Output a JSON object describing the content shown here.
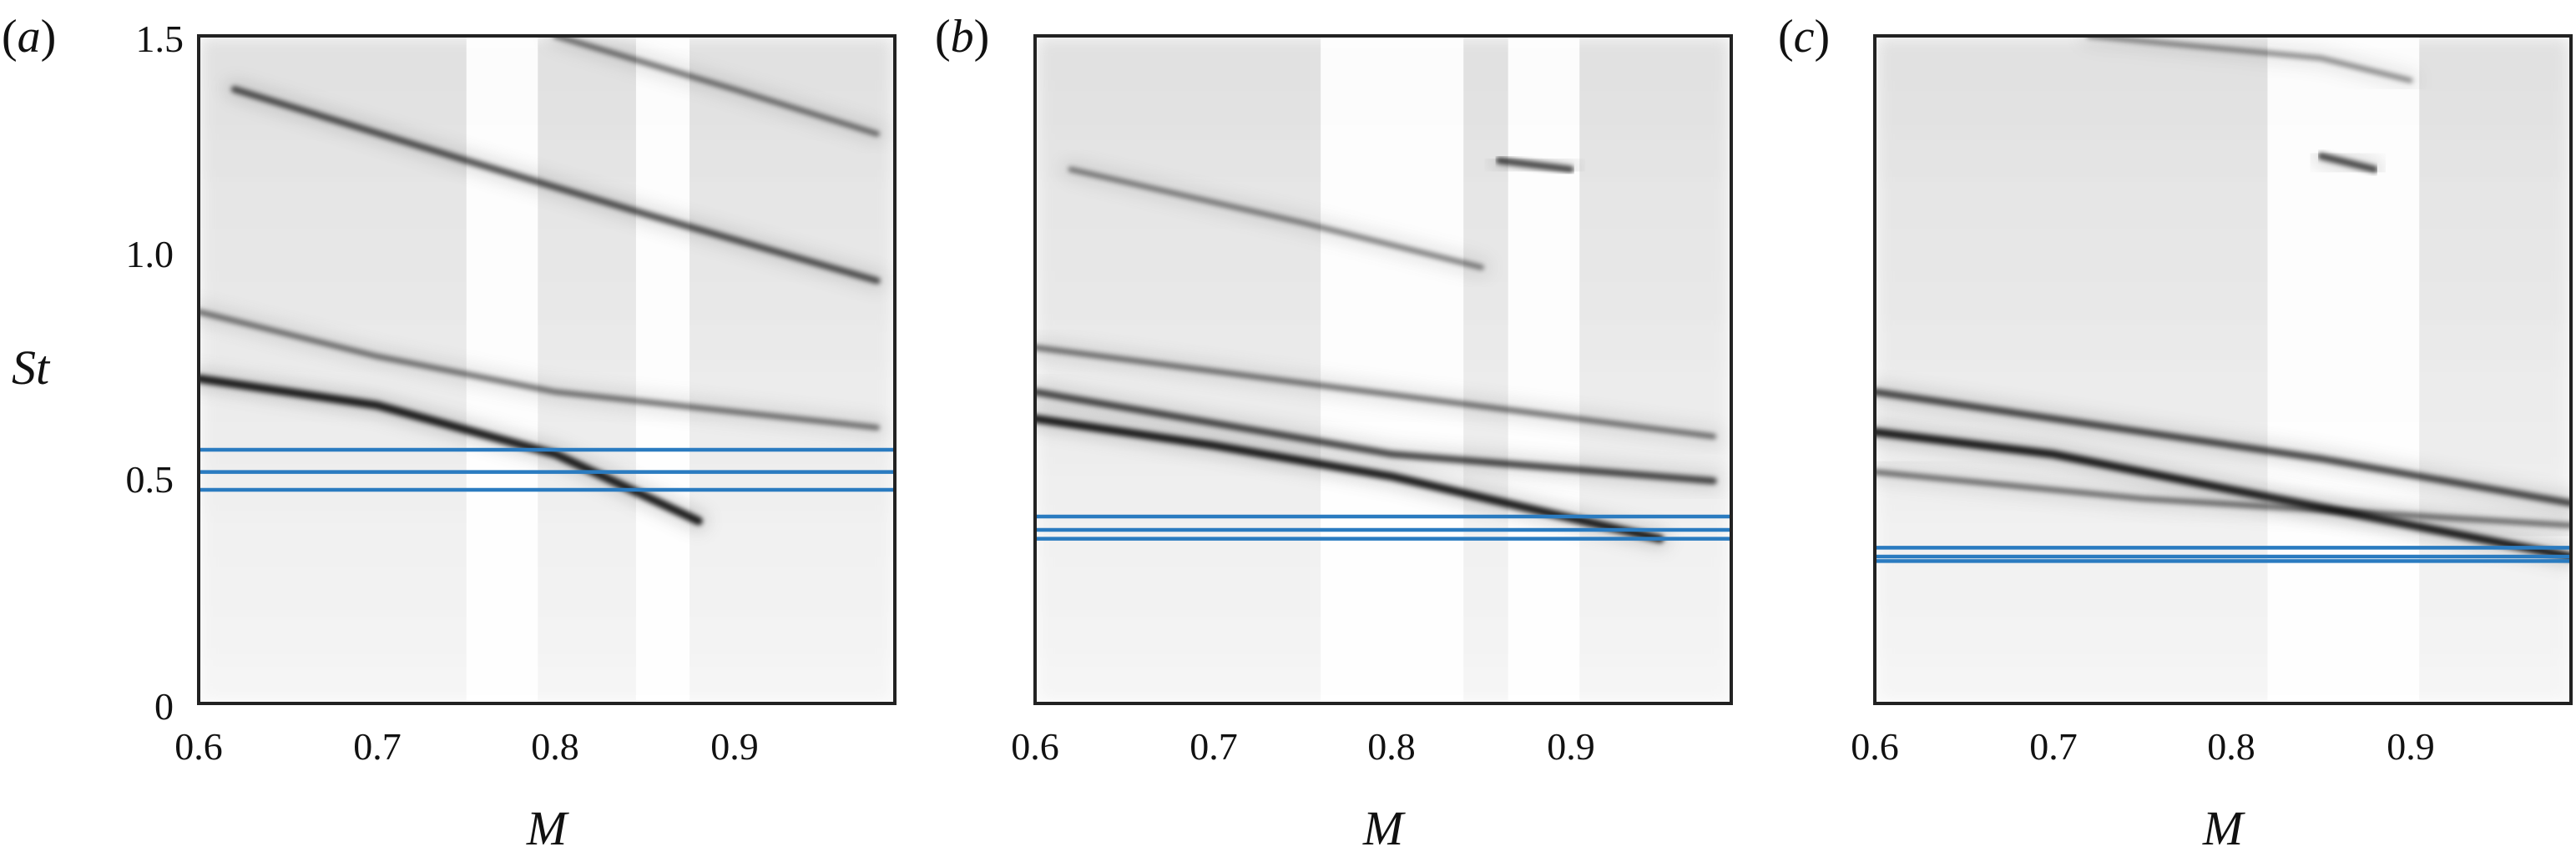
{
  "chart_data": [
    {
      "type": "heatmap",
      "panel_label": "(a)",
      "xlabel": "M",
      "ylabel": "St",
      "xlim": [
        0.6,
        0.99
      ],
      "ylim": [
        0,
        1.5
      ],
      "x_ticks": [
        "0.6",
        "0.7",
        "0.8",
        "0.9"
      ],
      "y_ticks": [
        "0",
        "0.5",
        "1.0",
        "1.5"
      ],
      "colormap": "white-to-black (grayscale)",
      "horizontal_lines": [
        0.57,
        0.52,
        0.48
      ],
      "line_color": "#2a7bc0",
      "white_bands_M": [
        [
          0.75,
          0.79
        ],
        [
          0.845,
          0.875
        ]
      ],
      "ridges": [
        {
          "M": [
            0.6,
            0.7,
            0.8,
            0.88
          ],
          "St": [
            0.73,
            0.67,
            0.56,
            0.41
          ],
          "strength": 1.0
        },
        {
          "M": [
            0.6,
            0.7,
            0.8,
            0.98
          ],
          "St": [
            0.88,
            0.78,
            0.7,
            0.62
          ],
          "strength": 0.6
        },
        {
          "M": [
            0.62,
            0.75,
            0.85,
            0.98
          ],
          "St": [
            1.38,
            1.22,
            1.1,
            0.95
          ],
          "strength": 0.75
        },
        {
          "M": [
            0.8,
            0.9,
            0.98
          ],
          "St": [
            1.5,
            1.38,
            1.28
          ],
          "strength": 0.6
        }
      ]
    },
    {
      "type": "heatmap",
      "panel_label": "(b)",
      "xlabel": "M",
      "ylabel": "",
      "xlim": [
        0.6,
        0.99
      ],
      "ylim": [
        0,
        1.5
      ],
      "x_ticks": [
        "0.6",
        "0.7",
        "0.8",
        "0.9"
      ],
      "y_ticks": [],
      "colormap": "white-to-black (grayscale)",
      "horizontal_lines": [
        0.42,
        0.39,
        0.37
      ],
      "line_color": "#2a7bc0",
      "white_bands_M": [
        [
          0.76,
          0.84
        ],
        [
          0.865,
          0.905
        ]
      ],
      "ridges": [
        {
          "M": [
            0.6,
            0.7,
            0.8,
            0.95
          ],
          "St": [
            0.64,
            0.58,
            0.51,
            0.37
          ],
          "strength": 1.0
        },
        {
          "M": [
            0.6,
            0.7,
            0.8,
            0.98
          ],
          "St": [
            0.7,
            0.63,
            0.56,
            0.5
          ],
          "strength": 0.8
        },
        {
          "M": [
            0.6,
            0.75,
            0.98
          ],
          "St": [
            0.8,
            0.72,
            0.6
          ],
          "strength": 0.6
        },
        {
          "M": [
            0.62,
            0.75,
            0.85
          ],
          "St": [
            1.2,
            1.08,
            0.98
          ],
          "strength": 0.55
        },
        {
          "M": [
            0.86,
            0.9
          ],
          "St": [
            1.22,
            1.2
          ],
          "strength": 0.8
        }
      ]
    },
    {
      "type": "heatmap",
      "panel_label": "(c)",
      "xlabel": "M",
      "ylabel": "",
      "xlim": [
        0.6,
        0.99
      ],
      "ylim": [
        0,
        1.5
      ],
      "x_ticks": [
        "0.6",
        "0.7",
        "0.8",
        "0.9"
      ],
      "y_ticks": [],
      "colormap": "white-to-black (grayscale)",
      "horizontal_lines": [
        0.35,
        0.33,
        0.32
      ],
      "line_color": "#2a7bc0",
      "white_bands_M": [
        [
          0.82,
          0.905
        ]
      ],
      "ridges": [
        {
          "M": [
            0.6,
            0.7,
            0.8,
            0.99
          ],
          "St": [
            0.61,
            0.56,
            0.48,
            0.33
          ],
          "strength": 1.0
        },
        {
          "M": [
            0.6,
            0.7,
            0.85,
            0.99
          ],
          "St": [
            0.7,
            0.64,
            0.55,
            0.45
          ],
          "strength": 0.8
        },
        {
          "M": [
            0.6,
            0.75,
            0.99
          ],
          "St": [
            0.52,
            0.46,
            0.4
          ],
          "strength": 0.6
        },
        {
          "M": [
            0.85,
            0.88
          ],
          "St": [
            1.23,
            1.2
          ],
          "strength": 0.8
        },
        {
          "M": [
            0.72,
            0.85,
            0.9
          ],
          "St": [
            1.5,
            1.45,
            1.4
          ],
          "strength": 0.5
        }
      ]
    }
  ]
}
